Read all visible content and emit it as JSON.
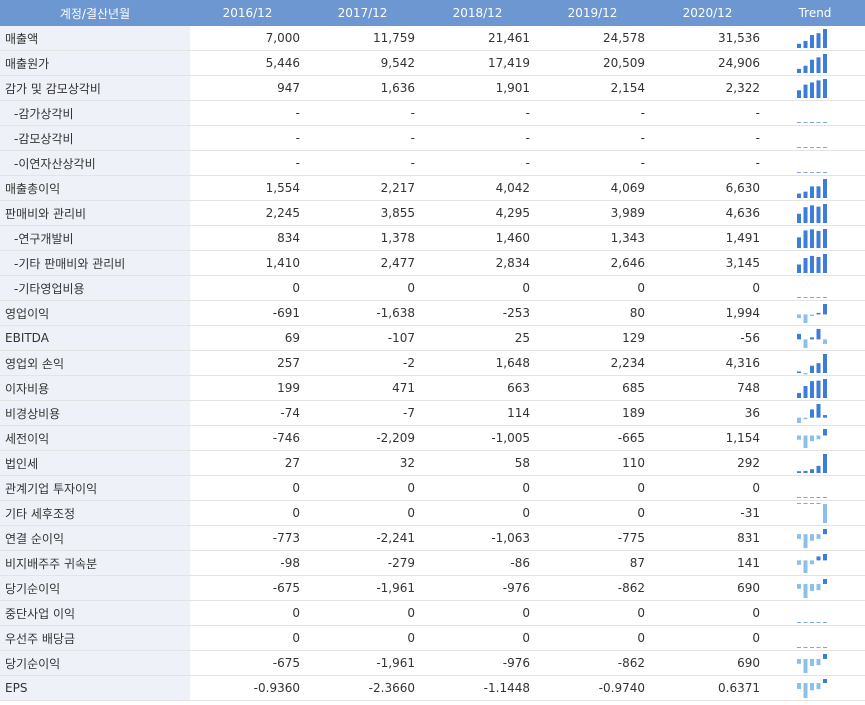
{
  "table": {
    "header": [
      "계정/결산년월",
      "2016/12",
      "2017/12",
      "2018/12",
      "2019/12",
      "2020/12",
      "Trend"
    ],
    "rows": [
      [
        "매출액",
        "7,000",
        "11,759",
        "21,461",
        "24,578",
        "31,536"
      ],
      [
        "매출원가",
        "5,446",
        "9,542",
        "17,419",
        "20,509",
        "24,906"
      ],
      [
        "감가 및 감모상각비",
        "947",
        "1,636",
        "1,901",
        "2,154",
        "2,322"
      ],
      [
        "-감가상각비",
        "-",
        "-",
        "-",
        "-",
        "-"
      ],
      [
        "-감모상각비",
        "-",
        "-",
        "-",
        "-",
        "-"
      ],
      [
        "-이연자산상각비",
        "-",
        "-",
        "-",
        "-",
        "-"
      ],
      [
        "매출총이익",
        "1,554",
        "2,217",
        "4,042",
        "4,069",
        "6,630"
      ],
      [
        "판매비와 관리비",
        "2,245",
        "3,855",
        "4,295",
        "3,989",
        "4,636"
      ],
      [
        "-연구개발비",
        "834",
        "1,378",
        "1,460",
        "1,343",
        "1,491"
      ],
      [
        "-기타 판매비와 관리비",
        "1,410",
        "2,477",
        "2,834",
        "2,646",
        "3,145"
      ],
      [
        "-기타영업비용",
        "0",
        "0",
        "0",
        "0",
        "0"
      ],
      [
        "영업이익",
        "-691",
        "-1,638",
        "-253",
        "80",
        "1,994"
      ],
      [
        "EBITDA",
        "69",
        "-107",
        "25",
        "129",
        "-56"
      ],
      [
        "영업외 손익",
        "257",
        "-2",
        "1,648",
        "2,234",
        "4,316"
      ],
      [
        "이자비용",
        "199",
        "471",
        "663",
        "685",
        "748"
      ],
      [
        "비경상비용",
        "-74",
        "-7",
        "114",
        "189",
        "36"
      ],
      [
        "세전이익",
        "-746",
        "-2,209",
        "-1,005",
        "-665",
        "1,154"
      ],
      [
        "법인세",
        "27",
        "32",
        "58",
        "110",
        "292"
      ],
      [
        "관계기업 투자이익",
        "0",
        "0",
        "0",
        "0",
        "0"
      ],
      [
        "기타 세후조정",
        "0",
        "0",
        "0",
        "0",
        "-31"
      ],
      [
        "연결 순이익",
        "-773",
        "-2,241",
        "-1,063",
        "-775",
        "831"
      ],
      [
        "비지배주주 귀속분",
        "-98",
        "-279",
        "-86",
        "87",
        "141"
      ],
      [
        "당기순이익",
        "-675",
        "-1,961",
        "-976",
        "-862",
        "690"
      ],
      [
        "중단사업 이익",
        "0",
        "0",
        "0",
        "0",
        "0"
      ],
      [
        "우선주 배당금",
        "0",
        "0",
        "0",
        "0",
        "0"
      ],
      [
        "당기순이익",
        "-675",
        "-1,961",
        "-976",
        "-862",
        "690"
      ],
      [
        "EPS",
        "-0.9360",
        "-2.3660",
        "-1.1448",
        "-0.9740",
        "0.6371"
      ]
    ]
  }
}
